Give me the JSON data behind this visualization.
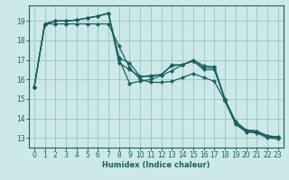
{
  "xlabel": "Humidex (Indice chaleur)",
  "bg_color": "#cce8e8",
  "grid_color": "#a0c8c8",
  "line_color": "#1a6060",
  "xlim": [
    -0.5,
    23.5
  ],
  "ylim": [
    12.5,
    19.8
  ],
  "yticks": [
    13,
    14,
    15,
    16,
    17,
    18,
    19
  ],
  "xticks": [
    0,
    1,
    2,
    3,
    4,
    5,
    6,
    7,
    8,
    9,
    10,
    11,
    12,
    13,
    14,
    15,
    16,
    17,
    18,
    19,
    20,
    21,
    22,
    23
  ],
  "series": [
    {
      "x": [
        0,
        1,
        2,
        3,
        4,
        5,
        6,
        7,
        8,
        9,
        10,
        11,
        12,
        13,
        14,
        15,
        16,
        17,
        18,
        19,
        20,
        21,
        22,
        23
      ],
      "y": [
        15.6,
        18.85,
        19.0,
        19.0,
        19.05,
        19.15,
        19.25,
        19.4,
        17.1,
        16.85,
        16.15,
        16.2,
        16.25,
        16.75,
        16.75,
        17.0,
        16.7,
        16.65,
        15.0,
        13.85,
        13.4,
        13.35,
        13.1,
        13.05
      ]
    },
    {
      "x": [
        0,
        1,
        2,
        3,
        4,
        5,
        6,
        7,
        8,
        9,
        10,
        11,
        12,
        13,
        14,
        15,
        16,
        17,
        18,
        19,
        20,
        21,
        22,
        23
      ],
      "y": [
        15.6,
        18.85,
        19.0,
        19.0,
        19.05,
        19.15,
        19.25,
        19.4,
        16.85,
        16.5,
        16.15,
        16.15,
        16.25,
        16.7,
        16.75,
        16.95,
        16.6,
        16.6,
        14.95,
        13.8,
        13.4,
        13.35,
        13.1,
        13.05
      ]
    },
    {
      "x": [
        0,
        1,
        2,
        3,
        4,
        5,
        6,
        7,
        8,
        9,
        10,
        11,
        12,
        13,
        14,
        15,
        16,
        17,
        18,
        19,
        20,
        21,
        22,
        23
      ],
      "y": [
        15.6,
        18.85,
        19.0,
        19.0,
        19.05,
        19.15,
        19.25,
        19.4,
        17.05,
        15.8,
        15.9,
        16.0,
        16.2,
        16.45,
        16.75,
        16.95,
        16.5,
        16.5,
        14.95,
        13.75,
        13.35,
        13.3,
        13.05,
        13.0
      ]
    },
    {
      "x": [
        0,
        1,
        2,
        3,
        4,
        5,
        6,
        7,
        8,
        9,
        10,
        11,
        12,
        13,
        14,
        15,
        16,
        17,
        18,
        19,
        20,
        21,
        22,
        23
      ],
      "y": [
        15.6,
        18.85,
        18.85,
        18.85,
        18.85,
        18.85,
        18.85,
        18.85,
        17.7,
        16.6,
        16.0,
        15.85,
        15.85,
        15.9,
        16.1,
        16.3,
        16.1,
        15.9,
        14.9,
        13.7,
        13.3,
        13.25,
        13.0,
        12.95
      ]
    }
  ]
}
